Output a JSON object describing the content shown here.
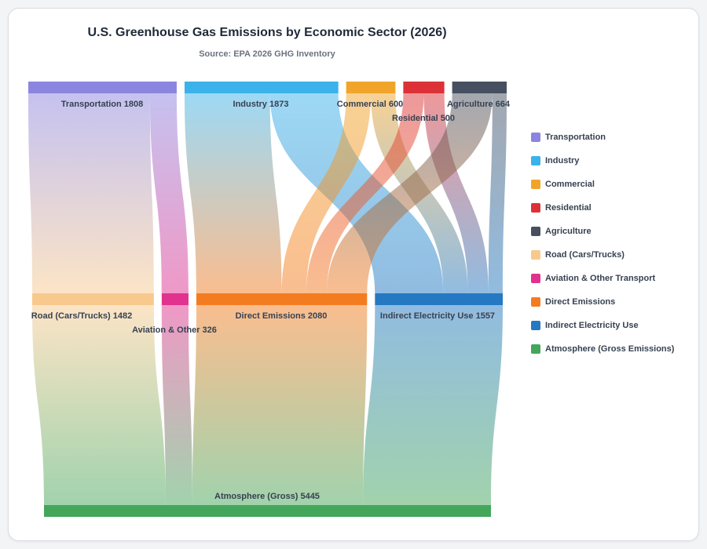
{
  "chart_data": {
    "type": "sankey",
    "title": "U.S. Greenhouse Gas Emissions by Economic Sector (2026)",
    "subtitle": "Source: EPA 2026 GHG Inventory",
    "nodes": [
      {
        "id": "transportation",
        "label": "Transportation",
        "value": 1808,
        "color": "#8b85e0",
        "level": 0
      },
      {
        "id": "industry",
        "label": "Industry",
        "value": 1873,
        "color": "#3bb2ea",
        "level": 0
      },
      {
        "id": "commercial",
        "label": "Commercial",
        "value": 600,
        "color": "#f0a52a",
        "level": 0
      },
      {
        "id": "residential",
        "label": "Residential",
        "value": 500,
        "color": "#dc3237",
        "level": 0
      },
      {
        "id": "agriculture",
        "label": "Agriculture",
        "value": 664,
        "color": "#475060",
        "level": 0
      },
      {
        "id": "road",
        "label": "Road (Cars/Trucks)",
        "value": 1482,
        "color": "#f8c98d",
        "level": 1
      },
      {
        "id": "aviation",
        "label": "Aviation & Other Transport",
        "value": 326,
        "color": "#e0328e",
        "level": 1
      },
      {
        "id": "direct",
        "label": "Direct Emissions",
        "value": 2080,
        "color": "#f47c20",
        "level": 1
      },
      {
        "id": "indirect",
        "label": "Indirect Electricity Use",
        "value": 1557,
        "color": "#2479c2",
        "level": 1
      },
      {
        "id": "atmosphere",
        "label": "Atmosphere (Gross Emissions)",
        "value": 5445,
        "color": "#44a65a",
        "level": 2
      }
    ],
    "node_labels": [
      {
        "node": "transportation",
        "text": "Transportation 1808"
      },
      {
        "node": "industry",
        "text": "Industry 1873"
      },
      {
        "node": "commercial",
        "text": "Commercial 600"
      },
      {
        "node": "residential",
        "text": "Residential 500"
      },
      {
        "node": "agriculture",
        "text": "Agriculture 664"
      },
      {
        "node": "road",
        "text": "Road (Cars/Trucks) 1482"
      },
      {
        "node": "aviation",
        "text": "Aviation & Other 326"
      },
      {
        "node": "direct",
        "text": "Direct Emissions 2080"
      },
      {
        "node": "indirect",
        "text": "Indirect Electricity Use 1557"
      },
      {
        "node": "atmosphere",
        "text": "Atmosphere (Gross) 5445"
      }
    ],
    "links": [
      {
        "source": "transportation",
        "target": "road",
        "value": 1482
      },
      {
        "source": "transportation",
        "target": "aviation",
        "value": 326
      },
      {
        "source": "industry",
        "target": "direct",
        "value": 1040
      },
      {
        "source": "industry",
        "target": "indirect",
        "value": 833
      },
      {
        "source": "commercial",
        "target": "direct",
        "value": 300
      },
      {
        "source": "commercial",
        "target": "indirect",
        "value": 300
      },
      {
        "source": "residential",
        "target": "direct",
        "value": 250
      },
      {
        "source": "residential",
        "target": "indirect",
        "value": 250
      },
      {
        "source": "agriculture",
        "target": "direct",
        "value": 490
      },
      {
        "source": "agriculture",
        "target": "indirect",
        "value": 174
      },
      {
        "source": "road",
        "target": "atmosphere",
        "value": 1482
      },
      {
        "source": "aviation",
        "target": "atmosphere",
        "value": 326
      },
      {
        "source": "direct",
        "target": "atmosphere",
        "value": 2080
      },
      {
        "source": "indirect",
        "target": "atmosphere",
        "value": 1557
      }
    ],
    "legend": {
      "placement": "right",
      "items": [
        {
          "label": "Transportation",
          "color": "#8b85e0"
        },
        {
          "label": "Industry",
          "color": "#3bb2ea"
        },
        {
          "label": "Commercial",
          "color": "#f0a52a"
        },
        {
          "label": "Residential",
          "color": "#dc3237"
        },
        {
          "label": "Agriculture",
          "color": "#475060"
        },
        {
          "label": "Road (Cars/Trucks)",
          "color": "#f8c98d"
        },
        {
          "label": "Aviation & Other Transport",
          "color": "#e0328e"
        },
        {
          "label": "Direct Emissions",
          "color": "#f47c20"
        },
        {
          "label": "Indirect Electricity Use",
          "color": "#2479c2"
        },
        {
          "label": "Atmosphere (Gross Emissions)",
          "color": "#44a65a"
        }
      ]
    }
  }
}
